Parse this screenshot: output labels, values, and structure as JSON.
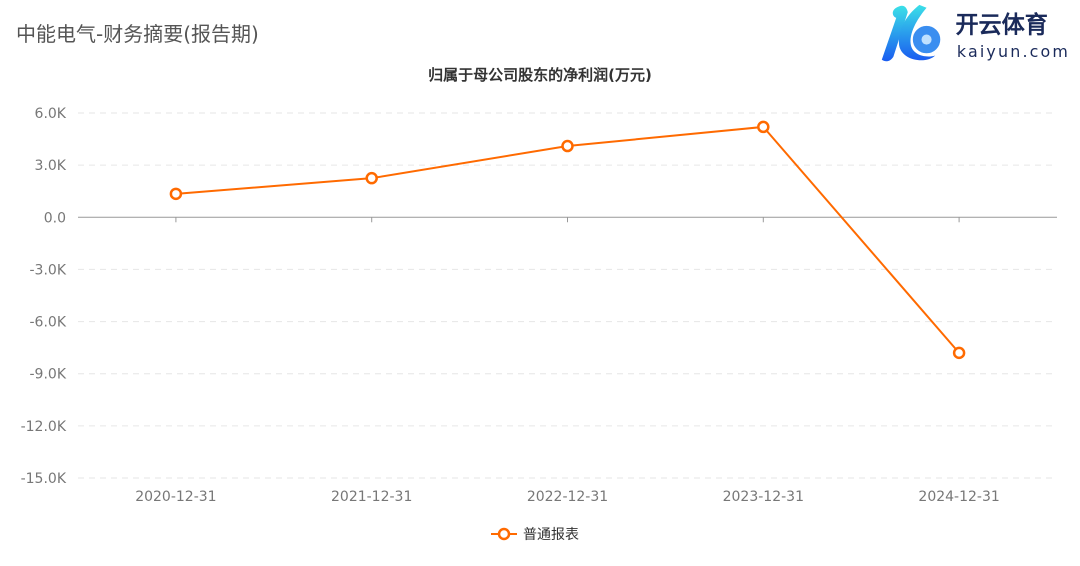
{
  "page_title": "中能电气-财务摘要(报告期)",
  "colors": {
    "series": "#ff6a00",
    "grid": "#e6e6e6",
    "axis": "#999999"
  },
  "chart_data": {
    "type": "line",
    "title": "归属于母公司股东的净利润(万元)",
    "xlabel": "",
    "ylabel": "",
    "categories": [
      "2020-12-31",
      "2021-12-31",
      "2022-12-31",
      "2023-12-31",
      "2024-12-31"
    ],
    "series": [
      {
        "name": "普通报表",
        "values": [
          1350,
          2250,
          4100,
          5200,
          -7800
        ]
      }
    ],
    "ylim": [
      -15000,
      6000
    ],
    "yticks": [
      6000,
      3000,
      0,
      -3000,
      -6000,
      -9000,
      -12000,
      -15000
    ],
    "ytick_labels": [
      "6.0K",
      "3.0K",
      "0.0",
      "-3.0K",
      "-6.0K",
      "-9.0K",
      "-12.0K",
      "-15.0K"
    ],
    "grid": true,
    "legend": "bottom-center"
  },
  "watermark": {
    "text_cn": "开云体育",
    "text_en": "kaiyun.com"
  }
}
